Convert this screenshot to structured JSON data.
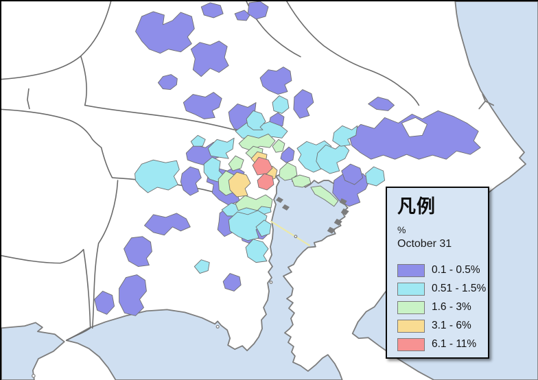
{
  "legend": {
    "title": "凡例",
    "unit_label": "%",
    "date_label": "October 31",
    "items": [
      {
        "label": "0.1 - 0.5%",
        "color": "#8e8ee9"
      },
      {
        "label": "0.51 - 1.5%",
        "color": "#9fe8f3"
      },
      {
        "label": "1.6 - 3%",
        "color": "#c9f3c6"
      },
      {
        "label": "3.1 - 6%",
        "color": "#f9dc92"
      },
      {
        "label": "6.1 - 11%",
        "color": "#f79292"
      }
    ]
  },
  "map": {
    "water_color": "#cfdff1",
    "land_color": "#ffffff",
    "coastline_color": "#7c7c7c",
    "prefecture_border_color": "#6a6a6a",
    "municipal_border_color": "#6f6f6f",
    "bay_bridge_color": "#ece9a8",
    "legend_background": "#d7e5f4"
  }
}
